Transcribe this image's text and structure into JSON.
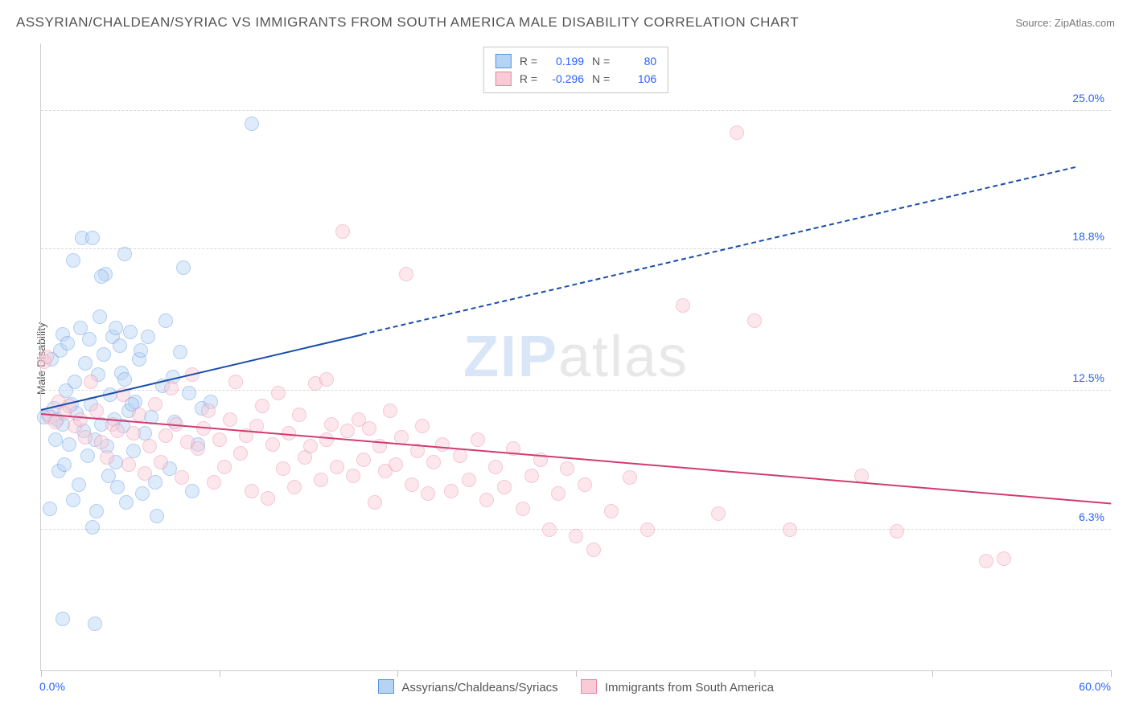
{
  "header": {
    "title": "ASSYRIAN/CHALDEAN/SYRIAC VS IMMIGRANTS FROM SOUTH AMERICA MALE DISABILITY CORRELATION CHART",
    "source_label": "Source: ZipAtlas.com"
  },
  "watermark": {
    "bold": "ZIP",
    "rest": "atlas"
  },
  "chart": {
    "type": "scatter",
    "ylabel": "Male Disability",
    "background_color": "#ffffff",
    "grid_color": "#d8d8d8",
    "axis_label_color": "#2962ff",
    "text_color": "#555555",
    "xlim": [
      0,
      60
    ],
    "ylim": [
      0,
      28
    ],
    "xlim_labels": {
      "min": "0.0%",
      "max": "60.0%"
    },
    "yticks": [
      {
        "v": 6.3,
        "label": "6.3%"
      },
      {
        "v": 12.5,
        "label": "12.5%"
      },
      {
        "v": 18.8,
        "label": "18.8%"
      },
      {
        "v": 25.0,
        "label": "25.0%"
      }
    ],
    "xticks": [
      0,
      10,
      20,
      30,
      40,
      50,
      60
    ],
    "point_radius": 8,
    "point_opacity": 0.45,
    "series": [
      {
        "key": "assyrian",
        "name": "Assyrians/Chaldeans/Syriacs",
        "fill": "#b7d3f4",
        "stroke": "#5a94de",
        "r_value": "0.199",
        "n_value": "80",
        "trend": {
          "color": "#1b4da8",
          "solid_from_x": 0,
          "solid_to_x": 18,
          "dash_to_x": 58,
          "y_at_x0": 11.6,
          "y_at_x60": 22.8
        },
        "points": [
          [
            0.2,
            11.3
          ],
          [
            0.4,
            11.4
          ],
          [
            0.5,
            7.2
          ],
          [
            0.6,
            13.9
          ],
          [
            0.7,
            11.7
          ],
          [
            0.8,
            10.3
          ],
          [
            0.9,
            11.2
          ],
          [
            1.0,
            8.9
          ],
          [
            1.1,
            14.3
          ],
          [
            1.2,
            15.0
          ],
          [
            1.2,
            11.0
          ],
          [
            1.3,
            9.2
          ],
          [
            1.4,
            12.5
          ],
          [
            1.5,
            14.6
          ],
          [
            1.6,
            10.1
          ],
          [
            1.7,
            11.9
          ],
          [
            1.8,
            7.6
          ],
          [
            1.8,
            18.3
          ],
          [
            1.9,
            12.9
          ],
          [
            2.0,
            11.5
          ],
          [
            2.1,
            8.3
          ],
          [
            2.2,
            15.3
          ],
          [
            2.3,
            19.3
          ],
          [
            2.4,
            10.7
          ],
          [
            2.5,
            13.7
          ],
          [
            2.6,
            9.6
          ],
          [
            2.7,
            14.8
          ],
          [
            2.8,
            11.9
          ],
          [
            2.9,
            6.4
          ],
          [
            3.0,
            10.3
          ],
          [
            3.1,
            7.1
          ],
          [
            3.2,
            13.2
          ],
          [
            3.3,
            15.8
          ],
          [
            3.4,
            11.0
          ],
          [
            3.5,
            14.1
          ],
          [
            3.6,
            17.7
          ],
          [
            3.7,
            10.0
          ],
          [
            3.8,
            8.7
          ],
          [
            3.9,
            12.3
          ],
          [
            4.0,
            14.9
          ],
          [
            4.1,
            11.2
          ],
          [
            4.2,
            9.3
          ],
          [
            4.3,
            8.2
          ],
          [
            4.4,
            14.5
          ],
          [
            4.5,
            13.3
          ],
          [
            4.6,
            10.9
          ],
          [
            4.7,
            18.6
          ],
          [
            4.8,
            7.5
          ],
          [
            4.9,
            11.6
          ],
          [
            5.0,
            15.1
          ],
          [
            5.2,
            9.8
          ],
          [
            5.3,
            12.0
          ],
          [
            5.5,
            13.9
          ],
          [
            5.7,
            7.9
          ],
          [
            5.8,
            10.6
          ],
          [
            6.0,
            14.9
          ],
          [
            6.2,
            11.3
          ],
          [
            6.5,
            6.9
          ],
          [
            6.8,
            12.7
          ],
          [
            7.0,
            15.6
          ],
          [
            7.2,
            9.0
          ],
          [
            7.5,
            11.1
          ],
          [
            7.8,
            14.2
          ],
          [
            8.0,
            18.0
          ],
          [
            8.3,
            12.4
          ],
          [
            8.5,
            8.0
          ],
          [
            8.8,
            10.1
          ],
          [
            9.0,
            11.7
          ],
          [
            1.2,
            2.3
          ],
          [
            3.0,
            2.1
          ],
          [
            2.9,
            19.3
          ],
          [
            3.4,
            17.6
          ],
          [
            4.2,
            15.3
          ],
          [
            4.7,
            13.0
          ],
          [
            5.1,
            11.9
          ],
          [
            5.6,
            14.3
          ],
          [
            6.4,
            8.4
          ],
          [
            7.4,
            13.1
          ],
          [
            11.8,
            24.4
          ],
          [
            9.5,
            12.0
          ]
        ]
      },
      {
        "key": "southamerica",
        "name": "Immigrants from South America",
        "fill": "#f9cbd6",
        "stroke": "#e985a5",
        "r_value": "-0.296",
        "n_value": "106",
        "trend": {
          "color": "#d13b72",
          "solid_from_x": 0,
          "solid_to_x": 60,
          "dash_to_x": 60,
          "y_at_x0": 11.4,
          "y_at_x60": 7.4
        },
        "points": [
          [
            0.2,
            13.8
          ],
          [
            0.5,
            11.3
          ],
          [
            0.8,
            11.1
          ],
          [
            1.0,
            12.0
          ],
          [
            1.3,
            11.5
          ],
          [
            1.6,
            11.8
          ],
          [
            1.9,
            10.9
          ],
          [
            2.2,
            11.2
          ],
          [
            2.5,
            10.4
          ],
          [
            2.8,
            12.9
          ],
          [
            3.1,
            11.6
          ],
          [
            3.4,
            10.2
          ],
          [
            3.7,
            9.5
          ],
          [
            4.0,
            11.0
          ],
          [
            4.3,
            10.7
          ],
          [
            4.6,
            12.3
          ],
          [
            4.9,
            9.2
          ],
          [
            5.2,
            10.6
          ],
          [
            5.5,
            11.4
          ],
          [
            5.8,
            8.8
          ],
          [
            6.1,
            10.0
          ],
          [
            6.4,
            11.9
          ],
          [
            6.7,
            9.3
          ],
          [
            7.0,
            10.5
          ],
          [
            7.3,
            12.6
          ],
          [
            7.6,
            11.0
          ],
          [
            7.9,
            8.6
          ],
          [
            8.2,
            10.2
          ],
          [
            8.5,
            13.2
          ],
          [
            8.8,
            9.9
          ],
          [
            9.1,
            10.8
          ],
          [
            9.4,
            11.6
          ],
          [
            9.7,
            8.4
          ],
          [
            10.0,
            10.3
          ],
          [
            10.3,
            9.1
          ],
          [
            10.6,
            11.2
          ],
          [
            10.9,
            12.9
          ],
          [
            11.2,
            9.7
          ],
          [
            11.5,
            10.5
          ],
          [
            11.8,
            8.0
          ],
          [
            12.1,
            10.9
          ],
          [
            12.4,
            11.8
          ],
          [
            12.7,
            7.7
          ],
          [
            13.0,
            10.1
          ],
          [
            13.3,
            12.4
          ],
          [
            13.6,
            9.0
          ],
          [
            13.9,
            10.6
          ],
          [
            14.2,
            8.2
          ],
          [
            14.5,
            11.4
          ],
          [
            14.8,
            9.5
          ],
          [
            15.1,
            10.0
          ],
          [
            15.4,
            12.8
          ],
          [
            15.7,
            8.5
          ],
          [
            16.0,
            10.3
          ],
          [
            16.3,
            11.0
          ],
          [
            16.6,
            9.1
          ],
          [
            16.9,
            19.6
          ],
          [
            17.2,
            10.7
          ],
          [
            17.5,
            8.7
          ],
          [
            17.8,
            11.2
          ],
          [
            18.1,
            9.4
          ],
          [
            18.4,
            10.8
          ],
          [
            18.7,
            7.5
          ],
          [
            19.0,
            10.0
          ],
          [
            19.3,
            8.9
          ],
          [
            19.6,
            11.6
          ],
          [
            19.9,
            9.2
          ],
          [
            20.2,
            10.4
          ],
          [
            20.5,
            17.7
          ],
          [
            20.8,
            8.3
          ],
          [
            21.1,
            9.8
          ],
          [
            21.4,
            10.9
          ],
          [
            21.7,
            7.9
          ],
          [
            22.0,
            9.3
          ],
          [
            22.5,
            10.1
          ],
          [
            23.0,
            8.0
          ],
          [
            23.5,
            9.6
          ],
          [
            24.0,
            8.5
          ],
          [
            24.5,
            10.3
          ],
          [
            25.0,
            7.6
          ],
          [
            25.5,
            9.1
          ],
          [
            26.0,
            8.2
          ],
          [
            26.5,
            9.9
          ],
          [
            27.0,
            7.2
          ],
          [
            27.5,
            8.7
          ],
          [
            28.0,
            9.4
          ],
          [
            28.5,
            6.3
          ],
          [
            29.0,
            7.9
          ],
          [
            29.5,
            9.0
          ],
          [
            30.0,
            6.0
          ],
          [
            30.5,
            8.3
          ],
          [
            31.0,
            5.4
          ],
          [
            32.0,
            7.1
          ],
          [
            33.0,
            8.6
          ],
          [
            34.0,
            6.3
          ],
          [
            36.0,
            16.3
          ],
          [
            38.0,
            7.0
          ],
          [
            39.0,
            24.0
          ],
          [
            40.0,
            15.6
          ],
          [
            42.0,
            6.3
          ],
          [
            46.0,
            8.7
          ],
          [
            48.0,
            6.2
          ],
          [
            53.0,
            4.9
          ],
          [
            54.0,
            5.0
          ],
          [
            0.3,
            14.0
          ],
          [
            16.0,
            13.0
          ]
        ]
      }
    ],
    "legend_top": {
      "r_label": "R  =",
      "n_label": "N  ="
    },
    "legend_bottom_labels": [
      "Assyrians/Chaldeans/Syriacs",
      "Immigrants from South America"
    ]
  }
}
